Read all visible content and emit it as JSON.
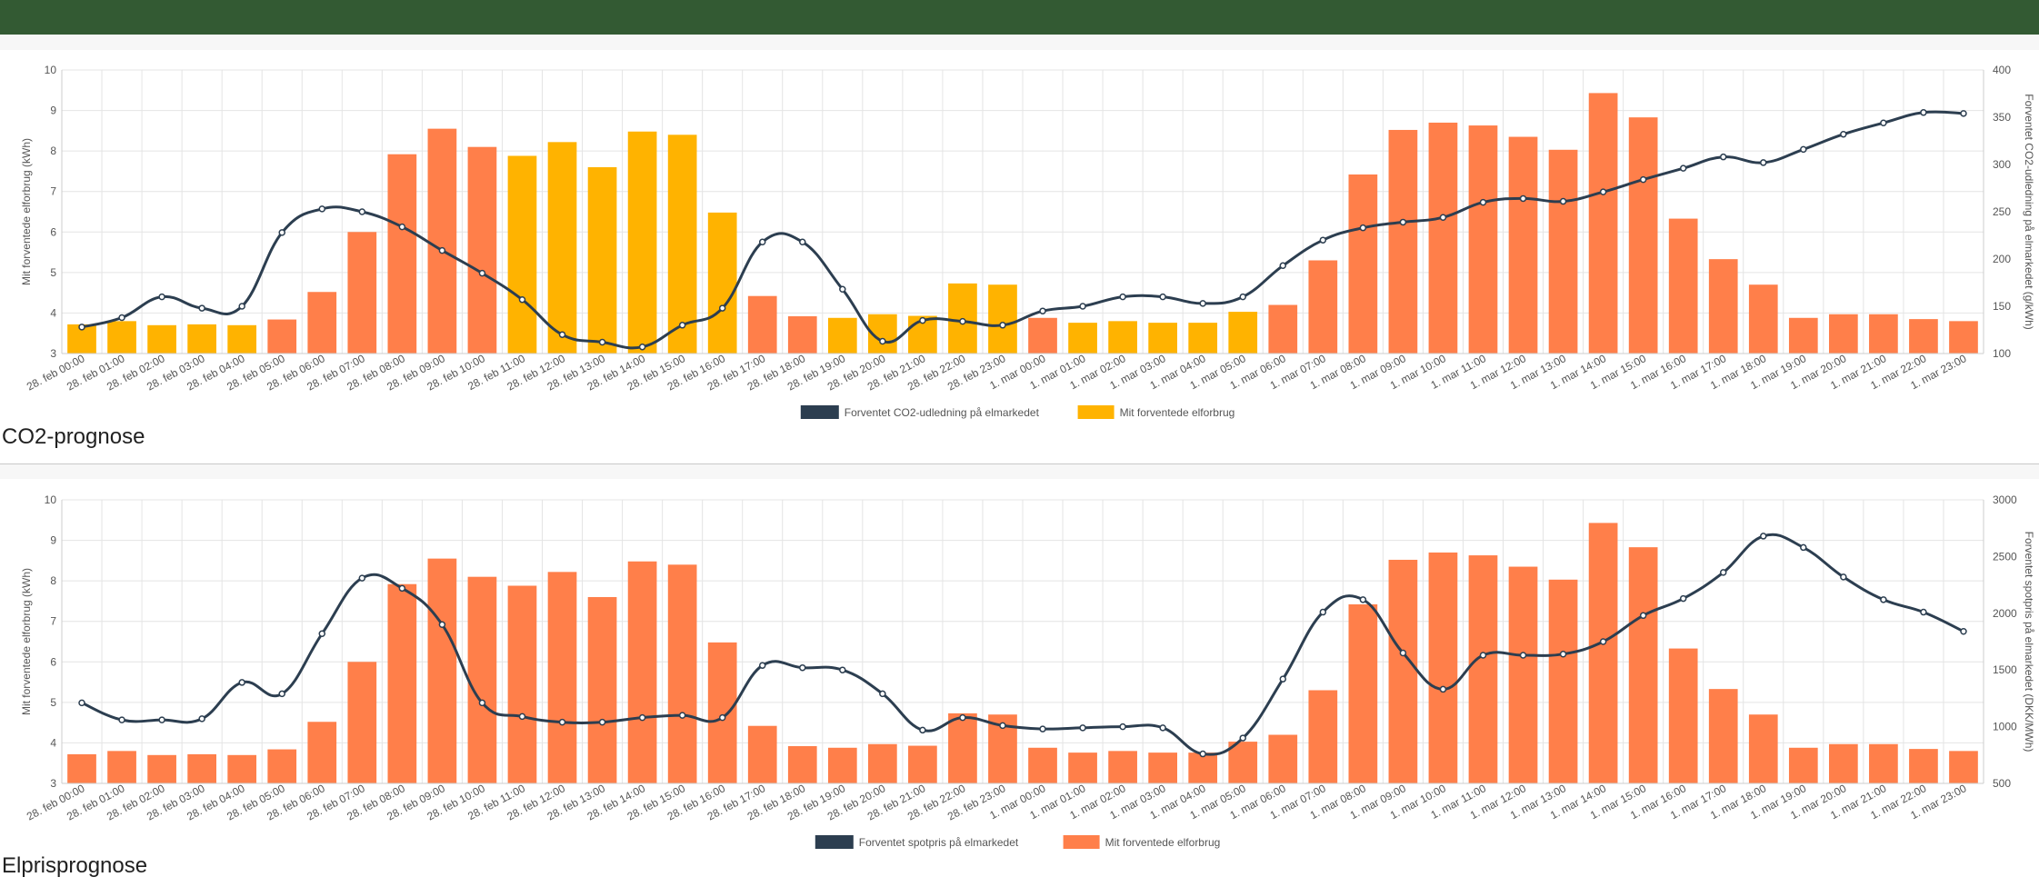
{
  "header": {
    "bar_color": "#335a33"
  },
  "sections": [
    {
      "title": "CO2-prognose"
    },
    {
      "title": "Elprisprognose"
    }
  ],
  "colors": {
    "line": "#2c3e50",
    "bar_orange": "#ff7f4a",
    "bar_yellow": "#ffb300",
    "grid": "#e4e4e4",
    "text": "#555555"
  },
  "chart_data": [
    {
      "type": "bar",
      "categories": [
        "28. feb 00:00",
        "28. feb 01:00",
        "28. feb 02:00",
        "28. feb 03:00",
        "28. feb 04:00",
        "28. feb 05:00",
        "28. feb 06:00",
        "28. feb 07:00",
        "28. feb 08:00",
        "28. feb 09:00",
        "28. feb 10:00",
        "28. feb 11:00",
        "28. feb 12:00",
        "28. feb 13:00",
        "28. feb 14:00",
        "28. feb 15:00",
        "28. feb 16:00",
        "28. feb 17:00",
        "28. feb 18:00",
        "28. feb 19:00",
        "28. feb 20:00",
        "28. feb 21:00",
        "28. feb 22:00",
        "28. feb 23:00",
        "1. mar 00:00",
        "1. mar 01:00",
        "1. mar 02:00",
        "1. mar 03:00",
        "1. mar 04:00",
        "1. mar 05:00",
        "1. mar 06:00",
        "1. mar 07:00",
        "1. mar 08:00",
        "1. mar 09:00",
        "1. mar 10:00",
        "1. mar 11:00",
        "1. mar 12:00",
        "1. mar 13:00",
        "1. mar 14:00",
        "1. mar 15:00",
        "1. mar 16:00",
        "1. mar 17:00",
        "1. mar 18:00",
        "1. mar 19:00",
        "1. mar 20:00",
        "1. mar 21:00",
        "1. mar 22:00",
        "1. mar 23:00"
      ],
      "series": [
        {
          "name": "Mit forventede elforbrug",
          "kind": "bar",
          "axis": "left",
          "values": [
            3.72,
            3.8,
            3.7,
            3.72,
            3.7,
            3.84,
            4.52,
            6.0,
            7.92,
            8.55,
            8.1,
            7.88,
            8.22,
            7.6,
            8.48,
            8.4,
            6.48,
            4.42,
            3.92,
            3.88,
            3.97,
            3.93,
            4.73,
            4.7,
            3.88,
            3.76,
            3.8,
            3.76,
            3.76,
            4.03,
            4.2,
            5.3,
            7.42,
            8.52,
            8.7,
            8.63,
            8.35,
            8.03,
            9.43,
            8.83,
            6.33,
            5.33,
            4.7,
            3.88,
            3.97,
            3.97,
            3.85,
            3.8
          ],
          "colors": [
            "yellow",
            "yellow",
            "yellow",
            "yellow",
            "yellow",
            "orange",
            "orange",
            "orange",
            "orange",
            "orange",
            "orange",
            "yellow",
            "yellow",
            "yellow",
            "yellow",
            "yellow",
            "yellow",
            "orange",
            "orange",
            "yellow",
            "yellow",
            "yellow",
            "yellow",
            "yellow",
            "orange",
            "yellow",
            "yellow",
            "yellow",
            "yellow",
            "yellow",
            "orange",
            "orange",
            "orange",
            "orange",
            "orange",
            "orange",
            "orange",
            "orange",
            "orange",
            "orange",
            "orange",
            "orange",
            "orange",
            "orange",
            "orange",
            "orange",
            "orange",
            "orange"
          ]
        },
        {
          "name": "Forventet CO2-udledning på elmarkedet",
          "kind": "line",
          "axis": "right",
          "values": [
            128,
            138,
            160,
            148,
            150,
            228,
            253,
            250,
            234,
            209,
            185,
            157,
            120,
            112,
            107,
            130,
            148,
            218,
            218,
            168,
            113,
            135,
            134,
            130,
            145,
            150,
            160,
            160,
            153,
            160,
            193,
            220,
            233,
            239,
            244,
            260,
            264,
            261,
            271,
            284,
            296,
            308,
            302,
            316,
            332,
            344,
            355,
            354
          ]
        }
      ],
      "ylabel": "Mit forventede elforbrug (kWh)",
      "ylim": [
        3,
        10
      ],
      "yticks": [
        3,
        4,
        5,
        6,
        7,
        8,
        9,
        10
      ],
      "y2label": "Forventet CO2-udledning på elmarkedet (g/kWh)",
      "y2lim": [
        100,
        400
      ],
      "y2ticks": [
        100,
        150,
        200,
        250,
        300,
        350,
        400
      ],
      "legend": [
        "Forventet CO2-udledning på elmarkedet",
        "Mit forventede elforbrug"
      ],
      "legend_placement": "bottom",
      "grid": true
    },
    {
      "type": "bar",
      "categories": [
        "28. feb 00:00",
        "28. feb 01:00",
        "28. feb 02:00",
        "28. feb 03:00",
        "28. feb 04:00",
        "28. feb 05:00",
        "28. feb 06:00",
        "28. feb 07:00",
        "28. feb 08:00",
        "28. feb 09:00",
        "28. feb 10:00",
        "28. feb 11:00",
        "28. feb 12:00",
        "28. feb 13:00",
        "28. feb 14:00",
        "28. feb 15:00",
        "28. feb 16:00",
        "28. feb 17:00",
        "28. feb 18:00",
        "28. feb 19:00",
        "28. feb 20:00",
        "28. feb 21:00",
        "28. feb 22:00",
        "28. feb 23:00",
        "1. mar 00:00",
        "1. mar 01:00",
        "1. mar 02:00",
        "1. mar 03:00",
        "1. mar 04:00",
        "1. mar 05:00",
        "1. mar 06:00",
        "1. mar 07:00",
        "1. mar 08:00",
        "1. mar 09:00",
        "1. mar 10:00",
        "1. mar 11:00",
        "1. mar 12:00",
        "1. mar 13:00",
        "1. mar 14:00",
        "1. mar 15:00",
        "1. mar 16:00",
        "1. mar 17:00",
        "1. mar 18:00",
        "1. mar 19:00",
        "1. mar 20:00",
        "1. mar 21:00",
        "1. mar 22:00",
        "1. mar 23:00"
      ],
      "series": [
        {
          "name": "Mit forventede elforbrug",
          "kind": "bar",
          "axis": "left",
          "values": [
            3.72,
            3.8,
            3.7,
            3.72,
            3.7,
            3.84,
            4.52,
            6.0,
            7.92,
            8.55,
            8.1,
            7.88,
            8.22,
            7.6,
            8.48,
            8.4,
            6.48,
            4.42,
            3.92,
            3.88,
            3.97,
            3.93,
            4.73,
            4.7,
            3.88,
            3.76,
            3.8,
            3.76,
            3.76,
            4.03,
            4.2,
            5.3,
            7.42,
            8.52,
            8.7,
            8.63,
            8.35,
            8.03,
            9.43,
            8.83,
            6.33,
            5.33,
            4.7,
            3.88,
            3.97,
            3.97,
            3.85,
            3.8
          ],
          "colors": [
            "orange",
            "orange",
            "orange",
            "orange",
            "orange",
            "orange",
            "orange",
            "orange",
            "orange",
            "orange",
            "orange",
            "orange",
            "orange",
            "orange",
            "orange",
            "orange",
            "orange",
            "orange",
            "orange",
            "orange",
            "orange",
            "orange",
            "orange",
            "orange",
            "orange",
            "orange",
            "orange",
            "orange",
            "orange",
            "orange",
            "orange",
            "orange",
            "orange",
            "orange",
            "orange",
            "orange",
            "orange",
            "orange",
            "orange",
            "orange",
            "orange",
            "orange",
            "orange",
            "orange",
            "orange",
            "orange",
            "orange",
            "orange"
          ]
        },
        {
          "name": "Forventet spotpris på elmarkedet",
          "kind": "line",
          "axis": "right",
          "values": [
            1210,
            1060,
            1060,
            1070,
            1390,
            1290,
            1820,
            2310,
            2220,
            1900,
            1210,
            1090,
            1040,
            1040,
            1080,
            1100,
            1080,
            1540,
            1520,
            1500,
            1290,
            970,
            1080,
            1010,
            980,
            990,
            1000,
            990,
            760,
            900,
            1420,
            2010,
            2120,
            1650,
            1330,
            1630,
            1630,
            1640,
            1750,
            1980,
            2130,
            2360,
            2680,
            2580,
            2320,
            2120,
            2010,
            1840
          ]
        }
      ],
      "ylabel": "Mit forventede elforbrug (kWh)",
      "ylim": [
        3,
        10
      ],
      "yticks": [
        3,
        4,
        5,
        6,
        7,
        8,
        9,
        10
      ],
      "y2label": "Forventet spotpris på elmarkedet (DKK/MWh)",
      "y2lim": [
        500,
        3000
      ],
      "y2ticks": [
        500,
        1000,
        1500,
        2000,
        2500,
        3000
      ],
      "legend": [
        "Forventet spotpris på elmarkedet",
        "Mit forventede elforbrug"
      ],
      "legend_placement": "bottom",
      "grid": true
    }
  ]
}
